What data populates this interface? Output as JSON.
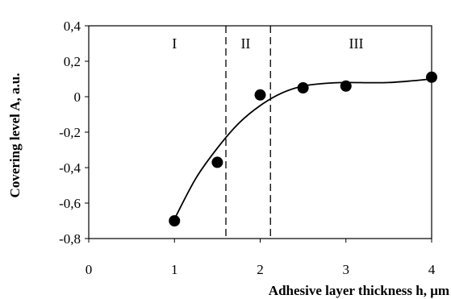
{
  "chart_data": {
    "type": "scatter",
    "xlabel": "Adhesive layer thickness h, μm",
    "ylabel": "Covering level  A, a.u.",
    "xlim": [
      0,
      4
    ],
    "ylim": [
      -0.8,
      0.4
    ],
    "x_ticks": [
      0,
      1,
      2,
      3,
      4
    ],
    "y_ticks": [
      0.4,
      0.2,
      0,
      -0.2,
      -0.4,
      -0.6,
      -0.8
    ],
    "x_tick_labels": [
      "0",
      "1",
      "2",
      "3",
      "4"
    ],
    "y_tick_labels": [
      "0,4",
      "0,2",
      "0",
      "-0,2",
      "-0,4",
      "-0,6",
      "-0,8"
    ],
    "grid": false,
    "series": [
      {
        "x": [
          1,
          1.5,
          2,
          2.5,
          3,
          4
        ],
        "y": [
          -0.7,
          -0.37,
          0.01,
          0.05,
          0.06,
          0.11
        ],
        "marker": "circle",
        "color": "#000000"
      }
    ],
    "trend_curve": {
      "x": [
        1,
        1.25,
        1.5,
        1.75,
        2,
        2.25,
        2.5,
        2.75,
        3,
        3.5,
        4
      ],
      "y": [
        -0.69,
        -0.46,
        -0.29,
        -0.15,
        -0.05,
        0.02,
        0.06,
        0.075,
        0.08,
        0.08,
        0.1
      ],
      "color": "#000000"
    },
    "vertical_lines": [
      {
        "x": 1.6,
        "style": "dashed"
      },
      {
        "x": 2.12,
        "style": "dashed"
      }
    ],
    "annotations": [
      {
        "text": "I",
        "x": 1.0,
        "y": 0.3
      },
      {
        "text": "II",
        "x": 1.83,
        "y": 0.3
      },
      {
        "text": "III",
        "x": 3.12,
        "y": 0.3
      }
    ]
  }
}
